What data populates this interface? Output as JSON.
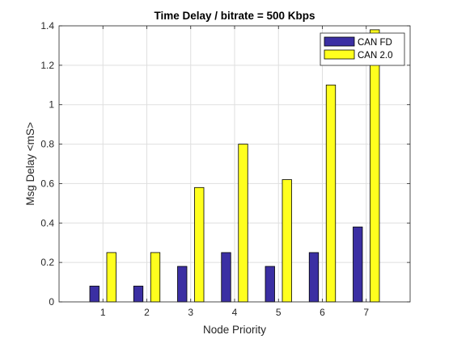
{
  "chart_data": {
    "type": "bar",
    "title": "Time Delay / bitrate = 500 Kbps",
    "xlabel": "Node Priority",
    "ylabel": "Msg Delay <mS>",
    "categories": [
      "1",
      "2",
      "3",
      "4",
      "5",
      "6",
      "7"
    ],
    "x_ticks": [
      1,
      2,
      3,
      4,
      5,
      6,
      7
    ],
    "xlim": [
      0,
      8
    ],
    "ylim": [
      0,
      1.4
    ],
    "y_ticks": [
      "0",
      "0.2",
      "0.4",
      "0.6",
      "0.8",
      "1",
      "1.2",
      "1.4"
    ],
    "grid": true,
    "legend_position": "top-right",
    "series": [
      {
        "name": "CAN FD",
        "color": "#3b2fa3",
        "values": [
          0.08,
          0.08,
          0.18,
          0.25,
          0.18,
          0.25,
          0.38
        ]
      },
      {
        "name": "CAN 2.0",
        "color": "#ffff1e",
        "values": [
          0.25,
          0.25,
          0.58,
          0.8,
          0.62,
          1.1,
          1.38
        ]
      }
    ]
  }
}
